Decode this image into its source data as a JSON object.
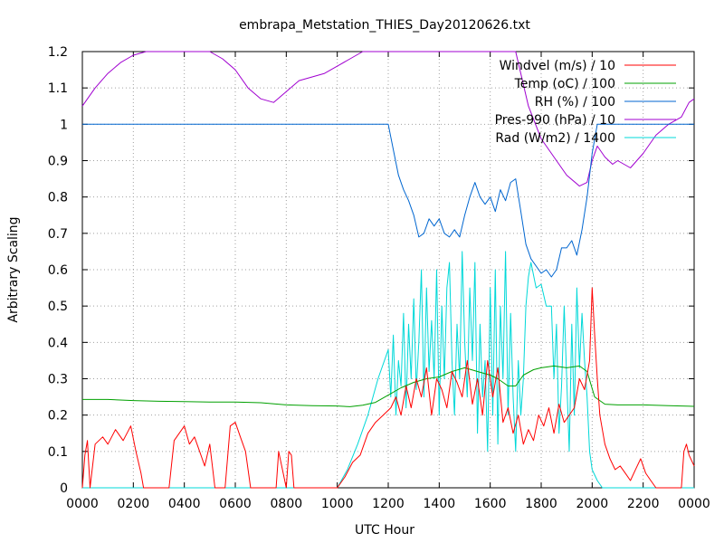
{
  "chart_data": {
    "type": "line",
    "title": "embrapa_Metstation_THIES_Day20120626.txt",
    "xlabel": "UTC Hour",
    "ylabel": "Arbitrary Scaling",
    "xlim": [
      0,
      24
    ],
    "ylim": [
      0,
      1.2
    ],
    "x_ticks": [
      {
        "v": 0,
        "label": "0000"
      },
      {
        "v": 2,
        "label": "0200"
      },
      {
        "v": 4,
        "label": "0400"
      },
      {
        "v": 6,
        "label": "0600"
      },
      {
        "v": 8,
        "label": "0800"
      },
      {
        "v": 10,
        "label": "1000"
      },
      {
        "v": 12,
        "label": "1200"
      },
      {
        "v": 14,
        "label": "1400"
      },
      {
        "v": 16,
        "label": "1600"
      },
      {
        "v": 18,
        "label": "1800"
      },
      {
        "v": 20,
        "label": "2000"
      },
      {
        "v": 22,
        "label": "2200"
      },
      {
        "v": 24,
        "label": "0000"
      }
    ],
    "y_ticks": [
      {
        "v": 0,
        "label": "0"
      },
      {
        "v": 0.1,
        "label": "0.1"
      },
      {
        "v": 0.2,
        "label": "0.2"
      },
      {
        "v": 0.3,
        "label": "0.3"
      },
      {
        "v": 0.4,
        "label": "0.4"
      },
      {
        "v": 0.5,
        "label": "0.5"
      },
      {
        "v": 0.6,
        "label": "0.6"
      },
      {
        "v": 0.7,
        "label": "0.7"
      },
      {
        "v": 0.8,
        "label": "0.8"
      },
      {
        "v": 0.9,
        "label": "0.9"
      },
      {
        "v": 1.0,
        "label": "1"
      },
      {
        "v": 1.1,
        "label": "1.1"
      },
      {
        "v": 1.2,
        "label": "1.2"
      }
    ],
    "grid": true,
    "legend_position": "top-right",
    "series": [
      {
        "name": "Windvel (m/s) / 10",
        "color": "#ff0000",
        "x": [
          0,
          0.1,
          0.2,
          0.3,
          0.5,
          0.8,
          1.0,
          1.3,
          1.6,
          1.9,
          2.1,
          2.3,
          2.4,
          3.4,
          3.6,
          3.8,
          4.0,
          4.2,
          4.4,
          4.6,
          4.8,
          5.0,
          5.2,
          5.6,
          5.8,
          6.0,
          6.2,
          6.4,
          6.6,
          7.6,
          7.7,
          8.0,
          8.1,
          8.2,
          8.3,
          8.6,
          10.0,
          10.3,
          10.6,
          10.9,
          11.2,
          11.5,
          11.8,
          12.1,
          12.3,
          12.5,
          12.7,
          12.9,
          13.1,
          13.3,
          13.5,
          13.7,
          13.9,
          14.1,
          14.3,
          14.5,
          14.7,
          14.9,
          15.1,
          15.3,
          15.5,
          15.7,
          15.9,
          16.1,
          16.3,
          16.5,
          16.7,
          16.9,
          17.1,
          17.3,
          17.5,
          17.7,
          17.9,
          18.1,
          18.3,
          18.5,
          18.7,
          18.9,
          19.1,
          19.3,
          19.5,
          19.7,
          19.9,
          20.0,
          20.1,
          20.2,
          20.3,
          20.5,
          20.7,
          20.9,
          21.1,
          21.3,
          21.5,
          21.7,
          21.9,
          22.1,
          22.3,
          22.5,
          23.5,
          23.6,
          23.7,
          23.8,
          24.0
        ],
        "y": [
          0,
          0.09,
          0.13,
          0,
          0.12,
          0.14,
          0.12,
          0.16,
          0.13,
          0.17,
          0.1,
          0.04,
          0,
          0,
          0.13,
          0.15,
          0.17,
          0.12,
          0.14,
          0.1,
          0.06,
          0.12,
          0,
          0,
          0.17,
          0.18,
          0.14,
          0.1,
          0,
          0,
          0.1,
          0,
          0.1,
          0.09,
          0,
          0,
          0,
          0.03,
          0.07,
          0.09,
          0.15,
          0.18,
          0.2,
          0.22,
          0.25,
          0.2,
          0.28,
          0.22,
          0.3,
          0.25,
          0.33,
          0.2,
          0.3,
          0.27,
          0.22,
          0.32,
          0.29,
          0.25,
          0.35,
          0.23,
          0.3,
          0.2,
          0.35,
          0.25,
          0.33,
          0.18,
          0.22,
          0.15,
          0.2,
          0.12,
          0.16,
          0.13,
          0.2,
          0.17,
          0.22,
          0.15,
          0.23,
          0.18,
          0.2,
          0.22,
          0.3,
          0.27,
          0.35,
          0.55,
          0.42,
          0.3,
          0.2,
          0.12,
          0.08,
          0.05,
          0.06,
          0.04,
          0.02,
          0.05,
          0.08,
          0.04,
          0.02,
          0,
          0,
          0.1,
          0.12,
          0.09,
          0.06
        ]
      },
      {
        "name": "Temp (oC) / 100",
        "color": "#00a000",
        "x": [
          0,
          1,
          2,
          3,
          4,
          5,
          6,
          7,
          8,
          9,
          10,
          10.5,
          11,
          11.5,
          12,
          12.5,
          13,
          13.5,
          14,
          14.5,
          15,
          15.5,
          16,
          16.3,
          16.7,
          17,
          17.3,
          17.7,
          18,
          18.5,
          19,
          19.5,
          19.8,
          20.1,
          20.5,
          21,
          22,
          23,
          24
        ],
        "y": [
          0.243,
          0.243,
          0.24,
          0.238,
          0.237,
          0.236,
          0.236,
          0.234,
          0.228,
          0.226,
          0.225,
          0.223,
          0.227,
          0.235,
          0.255,
          0.275,
          0.29,
          0.3,
          0.305,
          0.32,
          0.33,
          0.32,
          0.31,
          0.3,
          0.28,
          0.28,
          0.31,
          0.325,
          0.33,
          0.335,
          0.33,
          0.335,
          0.32,
          0.25,
          0.23,
          0.228,
          0.228,
          0.226,
          0.224
        ]
      },
      {
        "name": "RH (%) / 100",
        "color": "#0066d0",
        "x": [
          0,
          12.0,
          12.2,
          12.4,
          12.6,
          12.8,
          13.0,
          13.2,
          13.4,
          13.6,
          13.8,
          14.0,
          14.2,
          14.4,
          14.6,
          14.8,
          15.0,
          15.2,
          15.4,
          15.6,
          15.8,
          16.0,
          16.2,
          16.4,
          16.6,
          16.8,
          17.0,
          17.2,
          17.4,
          17.6,
          17.8,
          18.0,
          18.2,
          18.4,
          18.6,
          18.8,
          19.0,
          19.2,
          19.4,
          19.6,
          19.8,
          20.0,
          20.2,
          24
        ],
        "y": [
          1.0,
          1.0,
          0.93,
          0.86,
          0.82,
          0.79,
          0.75,
          0.69,
          0.7,
          0.74,
          0.72,
          0.74,
          0.7,
          0.69,
          0.71,
          0.69,
          0.75,
          0.8,
          0.84,
          0.8,
          0.78,
          0.8,
          0.76,
          0.82,
          0.79,
          0.84,
          0.85,
          0.76,
          0.67,
          0.63,
          0.61,
          0.59,
          0.6,
          0.58,
          0.6,
          0.66,
          0.66,
          0.68,
          0.64,
          0.71,
          0.8,
          0.92,
          1.0,
          1.0
        ]
      },
      {
        "name": "Pres-990 (hPa) / 10",
        "color": "#a000d0",
        "x": [
          0,
          0.5,
          1.0,
          1.5,
          2.0,
          2.5,
          3.0,
          3.5,
          4.0,
          4.5,
          5.0,
          5.5,
          6.0,
          6.5,
          7.0,
          7.5,
          8.0,
          8.5,
          9.0,
          9.5,
          10.0,
          10.5,
          11.0,
          11.5,
          12.0,
          17.0,
          17.5,
          18.0,
          18.5,
          19.0,
          19.5,
          19.8,
          20.0,
          20.2,
          20.5,
          20.8,
          21.0,
          21.5,
          22.0,
          22.5,
          23.0,
          23.5,
          23.8,
          24.0
        ],
        "y": [
          1.05,
          1.1,
          1.14,
          1.17,
          1.19,
          1.2,
          1.2,
          1.2,
          1.2,
          1.2,
          1.2,
          1.18,
          1.15,
          1.1,
          1.07,
          1.06,
          1.09,
          1.12,
          1.13,
          1.14,
          1.16,
          1.18,
          1.2,
          1.2,
          1.2,
          1.2,
          1.05,
          0.96,
          0.91,
          0.86,
          0.83,
          0.84,
          0.9,
          0.94,
          0.91,
          0.89,
          0.9,
          0.88,
          0.92,
          0.97,
          1.0,
          1.02,
          1.06,
          1.07
        ]
      },
      {
        "name": "Rad (W/m2) / 1400",
        "color": "#00d8d8",
        "x": [
          0,
          10.0,
          10.4,
          10.8,
          11.2,
          11.6,
          12.0,
          12.1,
          12.2,
          12.3,
          12.4,
          12.5,
          12.6,
          12.7,
          12.8,
          12.9,
          13.0,
          13.1,
          13.2,
          13.3,
          13.4,
          13.5,
          13.6,
          13.7,
          13.8,
          13.9,
          14.0,
          14.1,
          14.2,
          14.3,
          14.4,
          14.5,
          14.6,
          14.7,
          14.8,
          14.9,
          15.0,
          15.1,
          15.2,
          15.3,
          15.4,
          15.5,
          15.6,
          15.7,
          15.8,
          15.9,
          16.0,
          16.1,
          16.2,
          16.3,
          16.4,
          16.5,
          16.6,
          16.7,
          16.8,
          16.9,
          17.0,
          17.1,
          17.2,
          17.3,
          17.4,
          17.5,
          17.6,
          17.8,
          18.0,
          18.2,
          18.4,
          18.5,
          18.6,
          18.7,
          18.8,
          18.9,
          19.0,
          19.1,
          19.2,
          19.3,
          19.4,
          19.5,
          19.6,
          19.7,
          19.8,
          19.9,
          20.0,
          20.2,
          20.4,
          24
        ],
        "y": [
          0,
          0,
          0.05,
          0.12,
          0.2,
          0.3,
          0.38,
          0.25,
          0.42,
          0.2,
          0.35,
          0.28,
          0.48,
          0.22,
          0.45,
          0.3,
          0.52,
          0.27,
          0.4,
          0.6,
          0.25,
          0.55,
          0.32,
          0.46,
          0.3,
          0.6,
          0.2,
          0.5,
          0.3,
          0.55,
          0.62,
          0.35,
          0.2,
          0.45,
          0.3,
          0.65,
          0.4,
          0.25,
          0.55,
          0.35,
          0.62,
          0.15,
          0.45,
          0.25,
          0.35,
          0.1,
          0.55,
          0.2,
          0.6,
          0.12,
          0.5,
          0.3,
          0.65,
          0.2,
          0.48,
          0.25,
          0.1,
          0.35,
          0.2,
          0.3,
          0.5,
          0.58,
          0.62,
          0.55,
          0.56,
          0.5,
          0.5,
          0.3,
          0.45,
          0.15,
          0.28,
          0.5,
          0.3,
          0.1,
          0.45,
          0.2,
          0.55,
          0.33,
          0.48,
          0.35,
          0.25,
          0.1,
          0.05,
          0.02,
          0,
          0
        ]
      }
    ]
  }
}
